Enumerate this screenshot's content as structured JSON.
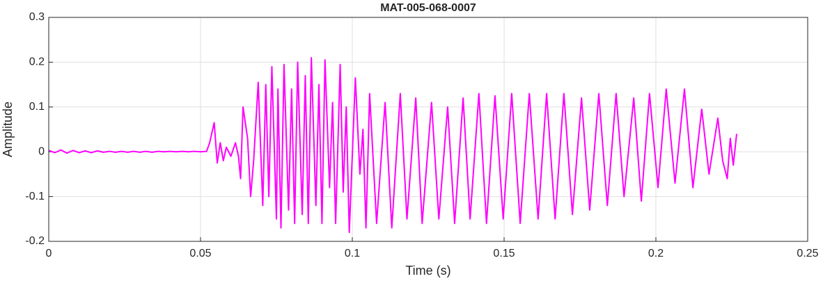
{
  "chart_data": {
    "type": "line",
    "title": "MAT-005-068-0007",
    "xlabel": "Time (s)",
    "ylabel": "Amplitude",
    "xlim": [
      0,
      0.25
    ],
    "xticks": [
      0,
      0.05,
      0.1,
      0.15,
      0.2,
      0.25
    ],
    "ylim": [
      -0.2,
      0.3
    ],
    "yticks": [
      -0.2,
      -0.1,
      0,
      0.1,
      0.2,
      0.3
    ],
    "grid": true,
    "series": [
      {
        "color": "#ff00ff",
        "x": [
          0,
          0.002,
          0.004,
          0.006,
          0.008,
          0.01,
          0.012,
          0.014,
          0.016,
          0.018,
          0.02,
          0.022,
          0.024,
          0.026,
          0.028,
          0.03,
          0.032,
          0.034,
          0.036,
          0.038,
          0.04,
          0.042,
          0.044,
          0.046,
          0.048,
          0.05,
          0.052,
          0.053,
          0.0545,
          0.0555,
          0.0565,
          0.0575,
          0.0585,
          0.06,
          0.0615,
          0.0625,
          0.0632,
          0.064,
          0.0655,
          0.0665,
          0.0675,
          0.069,
          0.0705,
          0.0715,
          0.0725,
          0.0735,
          0.075,
          0.0755,
          0.0765,
          0.0775,
          0.079,
          0.08,
          0.081,
          0.082,
          0.0835,
          0.0845,
          0.0855,
          0.0865,
          0.088,
          0.089,
          0.09,
          0.091,
          0.0925,
          0.0935,
          0.0945,
          0.096,
          0.097,
          0.098,
          0.099,
          0.101,
          0.1025,
          0.1035,
          0.1045,
          0.1057,
          0.108,
          0.1108,
          0.113,
          0.1158,
          0.118,
          0.1209,
          0.123,
          0.1261,
          0.1285,
          0.1314,
          0.1337,
          0.1365,
          0.1388,
          0.1417,
          0.1442,
          0.147,
          0.1497,
          0.1525,
          0.1553,
          0.1583,
          0.1612,
          0.164,
          0.1668,
          0.1697,
          0.1725,
          0.1755,
          0.1782,
          0.1812,
          0.184,
          0.1869,
          0.1895,
          0.1927,
          0.1952,
          0.1979,
          0.2007,
          0.2034,
          0.2063,
          0.2094,
          0.2122,
          0.2151,
          0.2175,
          0.2204,
          0.222,
          0.2235,
          0.2245,
          0.2255,
          0.2266
        ],
        "values": [
          0.003,
          -0.002,
          0.004,
          -0.003,
          0.003,
          -0.002,
          0.002,
          -0.002,
          0.002,
          -0.001,
          0.001,
          -0.001,
          0.001,
          -0.001,
          0.001,
          -0.001,
          0.001,
          -0.001,
          0.001,
          0,
          0.001,
          0,
          0.001,
          0,
          0.001,
          0,
          0.001,
          0.02,
          0.065,
          -0.025,
          0.02,
          -0.02,
          0.01,
          -0.01,
          0.02,
          -0.01,
          -0.06,
          0.1,
          0.03,
          -0.1,
          -0.02,
          0.155,
          -0.12,
          0.15,
          -0.1,
          0.19,
          -0.15,
          0.14,
          -0.17,
          0.195,
          -0.13,
          0.14,
          -0.16,
          0.2,
          -0.14,
          0.17,
          -0.16,
          0.21,
          -0.12,
          0.15,
          -0.16,
          0.205,
          -0.08,
          0.11,
          -0.16,
          0.195,
          -0.09,
          0.1,
          -0.18,
          0.165,
          -0.05,
          0.05,
          -0.17,
          0.13,
          -0.16,
          0.11,
          -0.17,
          0.13,
          -0.15,
          0.12,
          -0.16,
          0.11,
          -0.15,
          0.1,
          -0.16,
          0.12,
          -0.15,
          0.13,
          -0.16,
          0.125,
          -0.15,
          0.13,
          -0.16,
          0.13,
          -0.15,
          0.13,
          -0.15,
          0.13,
          -0.14,
          0.12,
          -0.13,
          0.13,
          -0.12,
          0.13,
          -0.1,
          0.12,
          -0.11,
          0.13,
          -0.08,
          0.14,
          -0.07,
          0.14,
          -0.08,
          0.095,
          -0.05,
          0.075,
          -0.02,
          -0.06,
          0.03,
          -0.03,
          0.04
        ]
      }
    ]
  }
}
